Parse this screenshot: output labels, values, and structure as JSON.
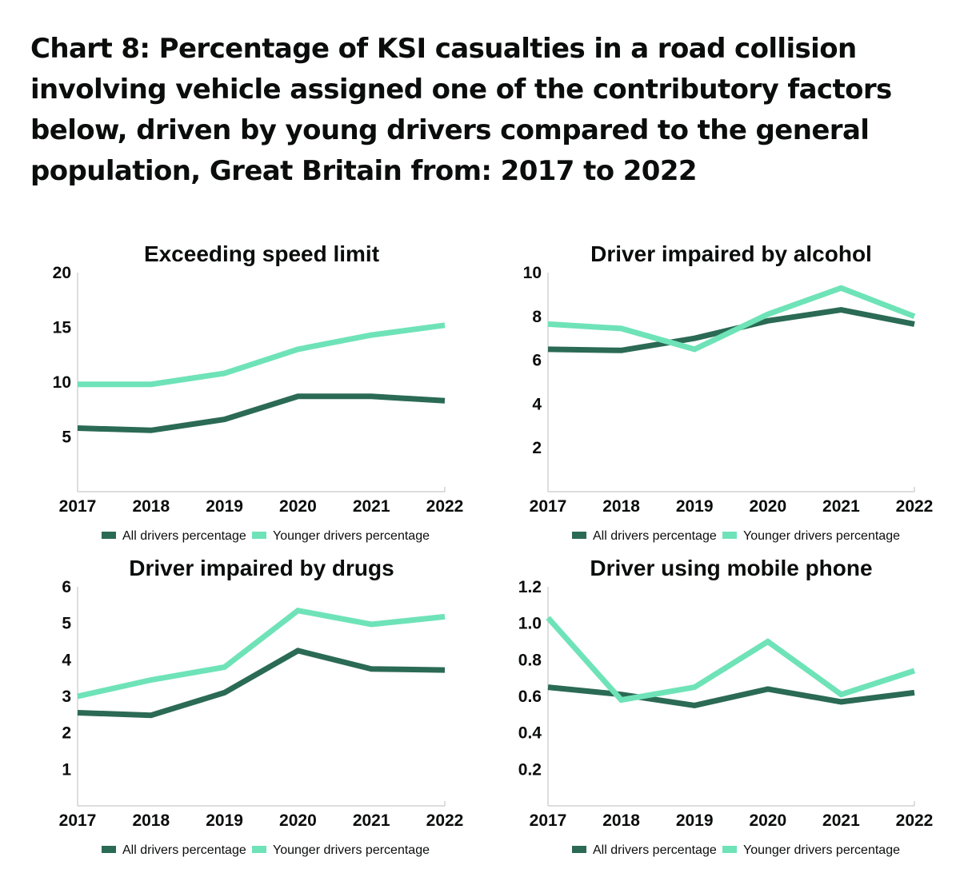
{
  "page": {
    "title": "Chart 8: Percentage of KSI casualties in a road collision involving vehicle assigned one of the contributory factors below, driven by young drivers compared to the general population, Great Britain from: 2017 to 2022"
  },
  "colors": {
    "all_drivers": "#2b6a55",
    "younger_drivers": "#6fe3b8",
    "axis": "#c8c8c8"
  },
  "chart_data": [
    {
      "type": "line",
      "title": "Exceeding speed limit",
      "categories": [
        "2017",
        "2018",
        "2019",
        "2020",
        "2021",
        "2022"
      ],
      "yticks": [
        "5",
        "10",
        "15",
        "20"
      ],
      "ylim": [
        0,
        20
      ],
      "series": [
        {
          "name": "All drivers percentage",
          "values": [
            5.8,
            5.6,
            6.6,
            8.7,
            8.7,
            8.3
          ]
        },
        {
          "name": "Younger drivers percentage",
          "values": [
            9.8,
            9.8,
            10.8,
            13.0,
            14.3,
            15.2
          ]
        }
      ],
      "legend": "bottom"
    },
    {
      "type": "line",
      "title": "Driver impaired by alcohol",
      "categories": [
        "2017",
        "2018",
        "2019",
        "2020",
        "2021",
        "2022"
      ],
      "yticks": [
        "2",
        "4",
        "6",
        "8",
        "10"
      ],
      "ylim": [
        0,
        10
      ],
      "series": [
        {
          "name": "All drivers percentage",
          "values": [
            6.5,
            6.45,
            7.0,
            7.8,
            8.3,
            7.65
          ]
        },
        {
          "name": "Younger drivers percentage",
          "values": [
            7.65,
            7.45,
            6.5,
            8.1,
            9.3,
            8.0
          ]
        }
      ],
      "legend": "bottom"
    },
    {
      "type": "line",
      "title": "Driver impaired by drugs",
      "categories": [
        "2017",
        "2018",
        "2019",
        "2020",
        "2021",
        "2022"
      ],
      "yticks": [
        "1",
        "2",
        "3",
        "4",
        "5",
        "6"
      ],
      "ylim": [
        0,
        6
      ],
      "series": [
        {
          "name": "All drivers percentage",
          "values": [
            2.55,
            2.48,
            3.1,
            4.25,
            3.75,
            3.72
          ]
        },
        {
          "name": "Younger drivers percentage",
          "values": [
            3.0,
            3.45,
            3.8,
            5.35,
            4.97,
            5.18
          ]
        }
      ],
      "legend": "bottom"
    },
    {
      "type": "line",
      "title": "Driver using mobile phone",
      "categories": [
        "2017",
        "2018",
        "2019",
        "2020",
        "2021",
        "2022"
      ],
      "yticks": [
        "0.2",
        "0.4",
        "0.6",
        "0.8",
        "1.0",
        "1.2"
      ],
      "ylim": [
        0,
        1.2
      ],
      "series": [
        {
          "name": "All drivers percentage",
          "values": [
            0.65,
            0.61,
            0.55,
            0.64,
            0.57,
            0.62
          ]
        },
        {
          "name": "Younger drivers percentage",
          "values": [
            1.03,
            0.58,
            0.65,
            0.9,
            0.61,
            0.74
          ]
        }
      ],
      "legend": "bottom"
    }
  ]
}
